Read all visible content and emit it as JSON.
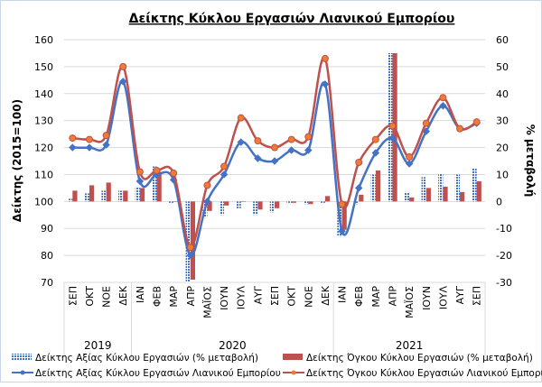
{
  "chart_data": {
    "type": "bar+line",
    "title": "Δείκτης Κύκλου Εργασιών Λιανικού Εμπορίου",
    "ylabel": "Δείκτης (2015=100)",
    "y2label": "% μεταβολή",
    "ylim": [
      70,
      160
    ],
    "y2lim": [
      -30,
      60
    ],
    "yticks": [
      "70",
      "80",
      "90",
      "100",
      "110",
      "120",
      "130",
      "140",
      "150",
      "160"
    ],
    "y2ticks": [
      "-30",
      "-20",
      "-10",
      "0",
      "10",
      "20",
      "30",
      "40",
      "50",
      "60"
    ],
    "categories": [
      "ΣΕΠ",
      "ΟΚΤ",
      "ΝΟΕ",
      "ΔΕΚ",
      "ΙΑΝ",
      "ΦΕΒ",
      "ΜΑΡ",
      "ΑΠΡ",
      "ΜΑΪΟΣ",
      "ΙΟΥΝ",
      "ΙΟΥΛ",
      "ΑΥΓ",
      "ΣΕΠ",
      "ΟΚΤ",
      "ΝΟΕ",
      "ΔΕΚ",
      "ΙΑΝ",
      "ΦΕΒ",
      "ΜΑΡ",
      "ΑΠΡ",
      "ΜΑΪΟΣ",
      "ΙΟΥΝ",
      "ΙΟΥΛ",
      "ΑΥΓ",
      "ΣΕΠ"
    ],
    "years": [
      {
        "label": "2019",
        "count": 4
      },
      {
        "label": "2020",
        "count": 12
      },
      {
        "label": "2021",
        "count": 9
      }
    ],
    "series": [
      {
        "name": "Δείκτης Αξίας Κύκλου Εργασιών (% μεταβολή)",
        "kind": "bar",
        "axis": "right",
        "color": "#4472c4",
        "values": [
          1,
          3,
          4,
          4,
          5.5,
          13,
          -0.5,
          -30,
          -6,
          -5,
          -2.5,
          -5,
          -4,
          -0.5,
          -1,
          -0.5,
          -13,
          -1,
          10,
          55,
          3.5,
          9,
          10.5,
          10,
          12.5
        ]
      },
      {
        "name": "Δείκτης Όγκου Κύκλου Εργασιών (% μεταβολή)",
        "kind": "bar",
        "axis": "right",
        "color": "#c0504d",
        "values": [
          4,
          6,
          7,
          4,
          5,
          11,
          0,
          -29,
          -3.5,
          -1.5,
          0,
          -3,
          -2.5,
          -0.5,
          -1,
          2,
          -10.5,
          2.5,
          11.5,
          55,
          1.5,
          5,
          5.5,
          3.5,
          7.5
        ]
      },
      {
        "name": "Δείκτης Αξίας Κύκλου Εργασιών Λιανικού Εμπορίου",
        "kind": "line",
        "axis": "left",
        "color": "#4472c4",
        "values": [
          120,
          120,
          121,
          144.5,
          107.5,
          110,
          108,
          80,
          100,
          110,
          122,
          116,
          115,
          119,
          119,
          143.5,
          89,
          105,
          118,
          123.5,
          114,
          126,
          135.5,
          127,
          129
        ]
      },
      {
        "name": "Δείκτης Όγκου Κύκλου Εργασιών Λιανικού Εμπορίου",
        "kind": "line",
        "axis": "left",
        "color": "#e06a2c",
        "values": [
          123.5,
          123,
          124.5,
          150,
          111,
          111.5,
          110.5,
          83,
          106,
          113,
          131,
          122.5,
          120,
          123,
          124,
          153,
          99,
          114.5,
          123,
          128,
          116.5,
          129,
          138.5,
          127,
          129.5
        ]
      }
    ],
    "grid": true,
    "legend": "bottom"
  }
}
